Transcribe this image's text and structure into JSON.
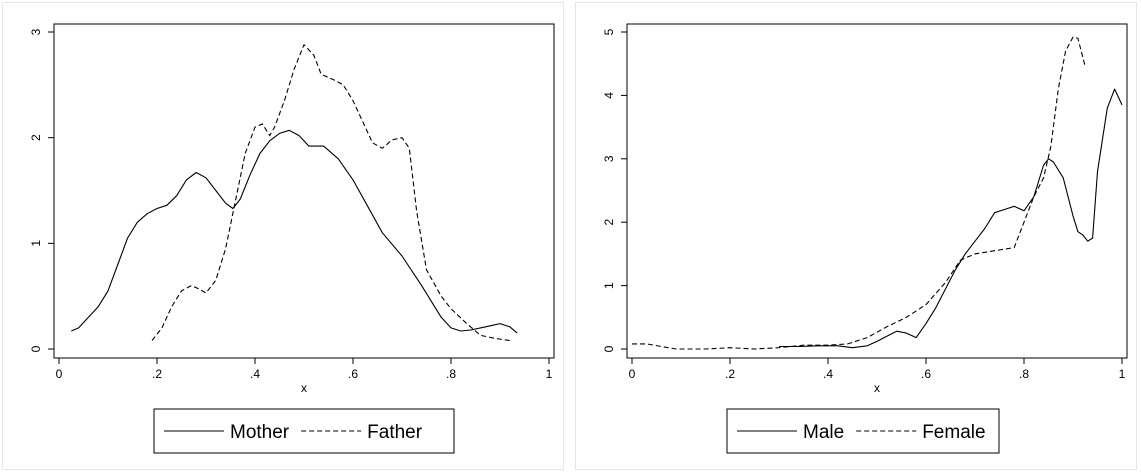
{
  "chart_data": [
    {
      "type": "line",
      "xlabel": "x",
      "ylabel": "",
      "xlim": [
        0,
        1
      ],
      "ylim": [
        0,
        3
      ],
      "xticks": [
        0,
        0.2,
        0.4,
        0.6,
        0.8,
        1
      ],
      "xtick_labels": [
        "0",
        ".2",
        ".4",
        ".6",
        ".8",
        "1"
      ],
      "yticks": [
        0,
        1,
        2,
        3
      ],
      "ytick_labels": [
        "0",
        "1",
        "2",
        "3"
      ],
      "legend_position": "bottom",
      "series": [
        {
          "name": "Mother",
          "style": "solid",
          "color": "#000000",
          "points": [
            [
              0.025,
              0.17
            ],
            [
              0.04,
              0.2
            ],
            [
              0.06,
              0.3
            ],
            [
              0.08,
              0.4
            ],
            [
              0.1,
              0.55
            ],
            [
              0.12,
              0.8
            ],
            [
              0.14,
              1.05
            ],
            [
              0.16,
              1.2
            ],
            [
              0.18,
              1.28
            ],
            [
              0.2,
              1.33
            ],
            [
              0.22,
              1.36
            ],
            [
              0.24,
              1.45
            ],
            [
              0.26,
              1.6
            ],
            [
              0.28,
              1.67
            ],
            [
              0.3,
              1.62
            ],
            [
              0.32,
              1.5
            ],
            [
              0.34,
              1.38
            ],
            [
              0.355,
              1.33
            ],
            [
              0.37,
              1.42
            ],
            [
              0.39,
              1.65
            ],
            [
              0.41,
              1.85
            ],
            [
              0.43,
              1.97
            ],
            [
              0.45,
              2.04
            ],
            [
              0.47,
              2.07
            ],
            [
              0.49,
              2.02
            ],
            [
              0.51,
              1.92
            ],
            [
              0.54,
              1.92
            ],
            [
              0.57,
              1.8
            ],
            [
              0.6,
              1.6
            ],
            [
              0.63,
              1.35
            ],
            [
              0.66,
              1.1
            ],
            [
              0.7,
              0.88
            ],
            [
              0.74,
              0.6
            ],
            [
              0.78,
              0.3
            ],
            [
              0.8,
              0.2
            ],
            [
              0.82,
              0.17
            ],
            [
              0.84,
              0.18
            ],
            [
              0.86,
              0.2
            ],
            [
              0.88,
              0.22
            ],
            [
              0.9,
              0.24
            ],
            [
              0.92,
              0.21
            ],
            [
              0.935,
              0.15
            ]
          ]
        },
        {
          "name": "Father",
          "style": "dashed",
          "color": "#000000",
          "points": [
            [
              0.19,
              0.08
            ],
            [
              0.21,
              0.2
            ],
            [
              0.23,
              0.4
            ],
            [
              0.25,
              0.55
            ],
            [
              0.27,
              0.6
            ],
            [
              0.285,
              0.57
            ],
            [
              0.3,
              0.53
            ],
            [
              0.32,
              0.65
            ],
            [
              0.34,
              0.95
            ],
            [
              0.36,
              1.4
            ],
            [
              0.38,
              1.85
            ],
            [
              0.4,
              2.1
            ],
            [
              0.415,
              2.13
            ],
            [
              0.43,
              2.02
            ],
            [
              0.44,
              2.1
            ],
            [
              0.46,
              2.35
            ],
            [
              0.48,
              2.65
            ],
            [
              0.5,
              2.88
            ],
            [
              0.52,
              2.78
            ],
            [
              0.535,
              2.6
            ],
            [
              0.56,
              2.55
            ],
            [
              0.58,
              2.5
            ],
            [
              0.6,
              2.35
            ],
            [
              0.62,
              2.15
            ],
            [
              0.64,
              1.95
            ],
            [
              0.66,
              1.9
            ],
            [
              0.68,
              1.98
            ],
            [
              0.7,
              2.0
            ],
            [
              0.715,
              1.9
            ],
            [
              0.73,
              1.3
            ],
            [
              0.75,
              0.75
            ],
            [
              0.78,
              0.5
            ],
            [
              0.8,
              0.38
            ],
            [
              0.83,
              0.25
            ],
            [
              0.86,
              0.13
            ],
            [
              0.89,
              0.1
            ],
            [
              0.92,
              0.08
            ]
          ]
        }
      ]
    },
    {
      "type": "line",
      "xlabel": "x",
      "ylabel": "",
      "xlim": [
        0,
        1
      ],
      "ylim": [
        0,
        5
      ],
      "xticks": [
        0,
        0.2,
        0.4,
        0.6,
        0.8,
        1
      ],
      "xtick_labels": [
        "0",
        ".2",
        ".4",
        ".6",
        ".8",
        "1"
      ],
      "yticks": [
        0,
        1,
        2,
        3,
        4,
        5
      ],
      "ytick_labels": [
        "0",
        "1",
        "2",
        "3",
        "4",
        "5"
      ],
      "legend_position": "bottom",
      "series": [
        {
          "name": "Male",
          "style": "solid",
          "color": "#000000",
          "points": [
            [
              0.3,
              0.04
            ],
            [
              0.34,
              0.04
            ],
            [
              0.38,
              0.05
            ],
            [
              0.42,
              0.05
            ],
            [
              0.45,
              0.02
            ],
            [
              0.48,
              0.05
            ],
            [
              0.5,
              0.12
            ],
            [
              0.52,
              0.2
            ],
            [
              0.54,
              0.28
            ],
            [
              0.56,
              0.25
            ],
            [
              0.58,
              0.18
            ],
            [
              0.6,
              0.4
            ],
            [
              0.62,
              0.65
            ],
            [
              0.64,
              0.95
            ],
            [
              0.66,
              1.25
            ],
            [
              0.68,
              1.5
            ],
            [
              0.7,
              1.7
            ],
            [
              0.72,
              1.9
            ],
            [
              0.74,
              2.15
            ],
            [
              0.76,
              2.2
            ],
            [
              0.78,
              2.25
            ],
            [
              0.8,
              2.18
            ],
            [
              0.82,
              2.4
            ],
            [
              0.84,
              2.9
            ],
            [
              0.85,
              3.0
            ],
            [
              0.86,
              2.95
            ],
            [
              0.88,
              2.7
            ],
            [
              0.9,
              2.1
            ],
            [
              0.91,
              1.85
            ],
            [
              0.92,
              1.8
            ],
            [
              0.93,
              1.7
            ],
            [
              0.94,
              1.75
            ],
            [
              0.95,
              2.8
            ],
            [
              0.97,
              3.8
            ],
            [
              0.985,
              4.1
            ],
            [
              1.0,
              3.85
            ]
          ]
        },
        {
          "name": "Female",
          "style": "dashed",
          "color": "#000000",
          "points": [
            [
              0.0,
              0.08
            ],
            [
              0.03,
              0.08
            ],
            [
              0.06,
              0.04
            ],
            [
              0.09,
              0.0
            ],
            [
              0.15,
              0.0
            ],
            [
              0.2,
              0.02
            ],
            [
              0.25,
              0.0
            ],
            [
              0.3,
              0.02
            ],
            [
              0.35,
              0.06
            ],
            [
              0.4,
              0.06
            ],
            [
              0.44,
              0.08
            ],
            [
              0.48,
              0.18
            ],
            [
              0.52,
              0.35
            ],
            [
              0.56,
              0.5
            ],
            [
              0.6,
              0.7
            ],
            [
              0.64,
              1.05
            ],
            [
              0.67,
              1.4
            ],
            [
              0.7,
              1.5
            ],
            [
              0.74,
              1.55
            ],
            [
              0.78,
              1.6
            ],
            [
              0.8,
              2.0
            ],
            [
              0.82,
              2.4
            ],
            [
              0.84,
              2.7
            ],
            [
              0.855,
              3.2
            ],
            [
              0.87,
              4.1
            ],
            [
              0.885,
              4.7
            ],
            [
              0.9,
              4.92
            ],
            [
              0.91,
              4.9
            ],
            [
              0.925,
              4.45
            ]
          ]
        }
      ]
    }
  ]
}
